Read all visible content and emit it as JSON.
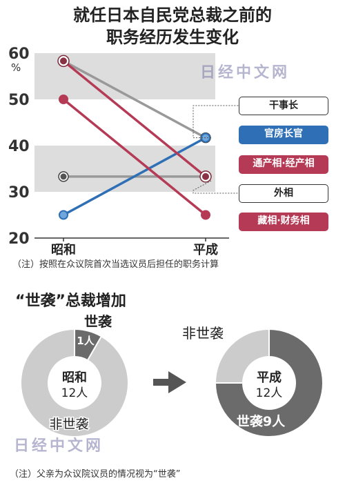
{
  "title_line1": "就任日本自民党总裁之前的",
  "title_line2": "职务经历发生变化",
  "watermark": "日经中文网",
  "note1": "（注）按照在众议院首次当选议员后担任的职务计算",
  "note2": "（注）父亲为众议院议员的情况视为“世袭”",
  "colors": {
    "gray": "#999999",
    "dark": "#555555",
    "blue": "#2e6fb5",
    "red": "#b53a55",
    "band": "#dddddd"
  },
  "chart_data": [
    {
      "type": "line",
      "unit_label": "%",
      "ylim": [
        20,
        60
      ],
      "yticks": [
        20,
        30,
        40,
        50,
        60
      ],
      "categories": [
        "昭和",
        "平成"
      ],
      "series": [
        {
          "name": "干事长",
          "values": [
            58.3,
            41.7
          ],
          "color": "#999999",
          "marker_style": "dark-ring"
        },
        {
          "name": "官房长官",
          "values": [
            25,
            41.7
          ],
          "color": "#2e6fb5",
          "marker_style": "blue"
        },
        {
          "name": "通产相·经产相",
          "values": [
            58.3,
            33.3
          ],
          "color": "#b53a55",
          "marker_style": "red"
        },
        {
          "name": "外相",
          "values": [
            33.3,
            33.3
          ],
          "color": "#999999",
          "marker_style": "dark-ring"
        },
        {
          "name": "藏相·财务相",
          "values": [
            50,
            25
          ],
          "color": "#b53a55",
          "marker_style": "red"
        }
      ],
      "legend": [
        {
          "label": "干事长",
          "style": "outline"
        },
        {
          "label": "官房长官",
          "style": "blue"
        },
        {
          "label": "通产相·经产相",
          "style": "red"
        },
        {
          "label": "外相",
          "style": "outline"
        },
        {
          "label": "藏相·财务相",
          "style": "red"
        }
      ]
    },
    {
      "type": "pie",
      "title": "“世袭”总裁增加",
      "arrow": "→",
      "pies": [
        {
          "center_label": "昭和",
          "total_label": "12人",
          "slices": [
            {
              "name": "世袭",
              "value": 1,
              "value_label": "1人",
              "color": "#6b6b6b"
            },
            {
              "name": "非世袭",
              "value": 11,
              "color": "#cccccc"
            }
          ],
          "outer_labels": [
            "世袭",
            "非世袭"
          ]
        },
        {
          "center_label": "平成",
          "total_label": "12人",
          "slices": [
            {
              "name": "世袭",
              "value": 9,
              "value_label": "世袭9人",
              "color": "#6b6b6b"
            },
            {
              "name": "非世袭",
              "value": 3,
              "color": "#cccccc"
            }
          ],
          "outer_labels": [
            "非世袭"
          ]
        }
      ]
    }
  ]
}
